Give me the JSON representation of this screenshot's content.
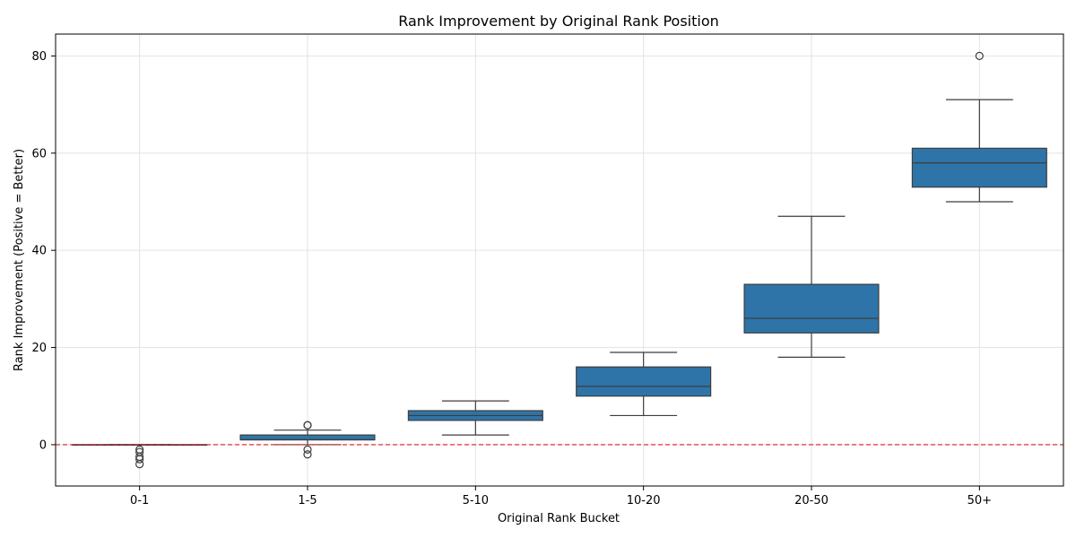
{
  "chart_data": {
    "type": "box",
    "title": "Rank Improvement by Original Rank Position",
    "xlabel": "Original Rank Bucket",
    "ylabel": "Rank Improvement (Positive = Better)",
    "ylim": [
      -8.5,
      84.5
    ],
    "y_ticks": [
      0,
      20,
      40,
      60,
      80
    ],
    "grid": true,
    "reference_line": {
      "y": 0,
      "color": "#e41a1c",
      "style": "dashed"
    },
    "categories": [
      "0-1",
      "1-5",
      "5-10",
      "10-20",
      "20-50",
      "50+"
    ],
    "boxes": [
      {
        "category": "0-1",
        "whisker_low": 0,
        "q1": 0,
        "median": 0,
        "q3": 0,
        "whisker_high": 0,
        "outliers": [
          -1,
          -1.5,
          -2.5,
          -3,
          -4
        ]
      },
      {
        "category": "1-5",
        "whisker_low": 0,
        "q1": 1,
        "median": 1,
        "q3": 2,
        "whisker_high": 3,
        "outliers": [
          4,
          4,
          -1,
          -2
        ]
      },
      {
        "category": "5-10",
        "whisker_low": 2,
        "q1": 5,
        "median": 6,
        "q3": 7,
        "whisker_high": 9,
        "outliers": []
      },
      {
        "category": "10-20",
        "whisker_low": 6,
        "q1": 10,
        "median": 12,
        "q3": 16,
        "whisker_high": 19,
        "outliers": []
      },
      {
        "category": "20-50",
        "whisker_low": 18,
        "q1": 23,
        "median": 26,
        "q3": 33,
        "whisker_high": 47,
        "outliers": []
      },
      {
        "category": "50+",
        "whisker_low": 50,
        "q1": 53,
        "median": 58,
        "q3": 61,
        "whisker_high": 71,
        "outliers": [
          80
        ]
      }
    ],
    "colors": {
      "box_fill": "#2f74a8",
      "line": "#3d3d3d",
      "grid": "#e3e3e3",
      "axis": "#000000",
      "reference": "#e41a1c"
    }
  }
}
